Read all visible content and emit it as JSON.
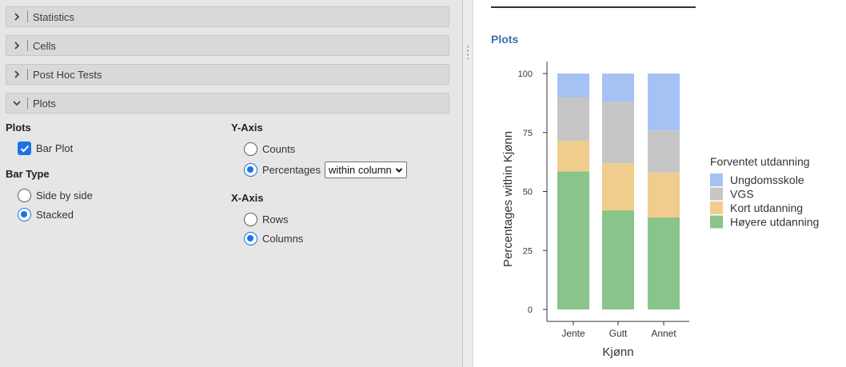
{
  "sections": [
    {
      "label": "Statistics",
      "state": "collapsed"
    },
    {
      "label": "Cells",
      "state": "collapsed"
    },
    {
      "label": "Post Hoc Tests",
      "state": "collapsed"
    },
    {
      "label": "Plots",
      "state": "expanded"
    }
  ],
  "plots_options": {
    "plots_title": "Plots",
    "bar_plot_label": "Bar Plot",
    "bar_plot_checked": true,
    "bar_type_title": "Bar Type",
    "side_by_side_label": "Side by side",
    "stacked_label": "Stacked",
    "bar_type_selected": "Stacked",
    "y_axis_title": "Y-Axis",
    "counts_label": "Counts",
    "percentages_label": "Percentages",
    "y_axis_selected": "Percentages",
    "percent_select_value": "within column",
    "x_axis_title": "X-Axis",
    "rows_label": "Rows",
    "columns_label": "Columns",
    "x_axis_selected": "Columns"
  },
  "output": {
    "heading": "Plots"
  },
  "colors": {
    "accent": "#1a73e8",
    "heading": "#3e6fb0",
    "Ungdomsskole": "#a4c2f4",
    "VGS": "#c6c6c6",
    "Kort utdanning": "#f0cd8c",
    "Høyere utdanning": "#89c48a"
  },
  "chart_data": {
    "type": "bar",
    "stacked": true,
    "categories": [
      "Jente",
      "Gutt",
      "Annet"
    ],
    "series": [
      {
        "name": "Høyere utdanning",
        "values": [
          58.5,
          42,
          39
        ]
      },
      {
        "name": "Kort utdanning",
        "values": [
          13,
          20,
          19
        ]
      },
      {
        "name": "VGS",
        "values": [
          18.5,
          26,
          18
        ]
      },
      {
        "name": "Ungdomsskole",
        "values": [
          10,
          12,
          24
        ]
      }
    ],
    "xlabel": "Kjønn",
    "ylabel": "Percentages within Kjønn",
    "ylim": [
      0,
      100
    ],
    "yticks": [
      "0",
      "25",
      "50",
      "75",
      "100"
    ],
    "legend_title": "Forventet utdanning",
    "legend_order": [
      "Ungdomsskole",
      "VGS",
      "Kort utdanning",
      "Høyere utdanning"
    ],
    "legend_position": "right",
    "grid": false
  }
}
